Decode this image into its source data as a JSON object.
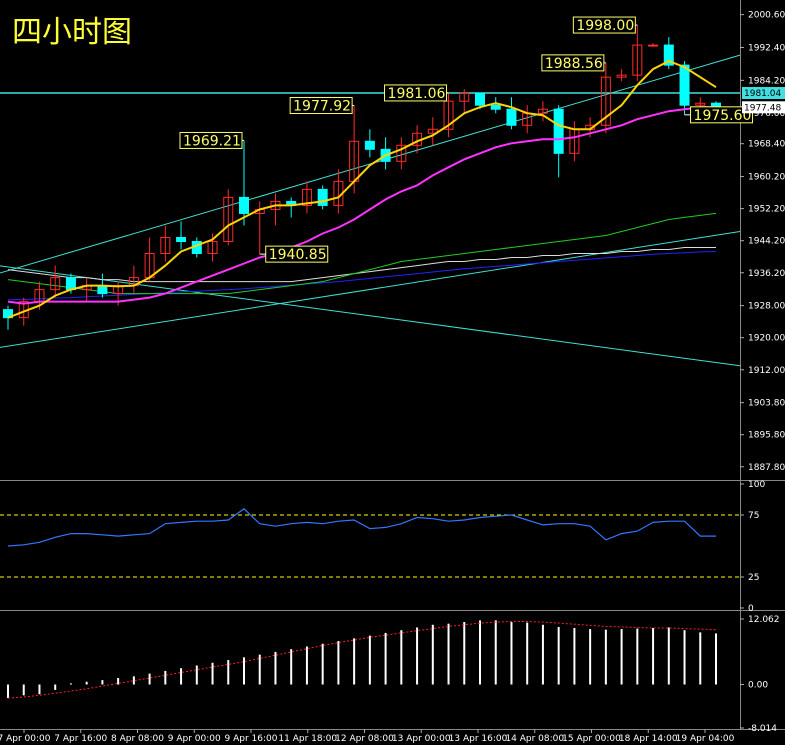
{
  "title": "四小时图",
  "colors": {
    "background": "#000000",
    "up_candle": "#ff2a2a",
    "down_candle": "#00ffff",
    "ma_fast": "#ffd400",
    "ma_mid": "#ff33ff",
    "ma_slow_green": "#22cc22",
    "ma_slow_white": "#dddddd",
    "ma_slow_blue": "#2222ff",
    "channel": "#40e0d0",
    "label_box": "#ffff66",
    "rsi_line": "#3377ff",
    "level_line": "#ffff00",
    "price_line": "#40e0e0",
    "atr_bar": "#ffffff",
    "atr_signal": "#ff2222"
  },
  "chart_data": [
    {
      "type": "candlestick",
      "title": "四小时图",
      "y_ticks": [
        "2000.60",
        "1992.40",
        "1984.20",
        "1976.00",
        "1968.40",
        "1960.20",
        "1952.20",
        "1944.20",
        "1936.20",
        "1928.00",
        "1920.00",
        "1912.00",
        "1903.80",
        "1895.80",
        "1887.80"
      ],
      "ylim": [
        1885.0,
        2003.0
      ],
      "x_ticks": [
        "7 Apr 00:00",
        "7 Apr 16:00",
        "8 Apr 08:00",
        "9 Apr 00:00",
        "9 Apr 16:00",
        "11 Apr 18:00",
        "12 Apr 08:00",
        "13 Apr 00:00",
        "13 Apr 16:00",
        "14 Apr 08:00",
        "15 Apr 00:00",
        "18 Apr 14:00",
        "19 Apr 04:00"
      ],
      "current_price_tag": "1981.04",
      "last_price_tag": "1977.48",
      "candles": [
        [
          1927.0,
          1928.0,
          1922.0,
          1925.0
        ],
        [
          1925.0,
          1930.0,
          1923.0,
          1929.0
        ],
        [
          1929.0,
          1934.0,
          1927.0,
          1932.0
        ],
        [
          1932.0,
          1938.0,
          1930.0,
          1935.0
        ],
        [
          1935.0,
          1936.0,
          1931.0,
          1932.0
        ],
        [
          1932.0,
          1935.0,
          1929.0,
          1933.0
        ],
        [
          1933.0,
          1936.0,
          1930.0,
          1931.0
        ],
        [
          1931.0,
          1934.0,
          1928.0,
          1933.0
        ],
        [
          1933.0,
          1938.0,
          1931.0,
          1935.0
        ],
        [
          1935.0,
          1945.0,
          1934.0,
          1941.0
        ],
        [
          1941.0,
          1948.0,
          1939.0,
          1945.0
        ],
        [
          1945.0,
          1949.0,
          1942.0,
          1944.0
        ],
        [
          1944.0,
          1945.0,
          1940.0,
          1941.0
        ],
        [
          1941.0,
          1946.0,
          1939.0,
          1944.0
        ],
        [
          1944.0,
          1957.0,
          1943.0,
          1955.0
        ],
        [
          1955.0,
          1969.21,
          1948.0,
          1951.0
        ],
        [
          1951.0,
          1954.0,
          1940.85,
          1952.0
        ],
        [
          1952.0,
          1956.0,
          1948.0,
          1954.0
        ],
        [
          1954.0,
          1955.0,
          1950.0,
          1953.0
        ],
        [
          1953.0,
          1959.0,
          1951.0,
          1957.0
        ],
        [
          1957.0,
          1958.0,
          1952.0,
          1953.0
        ],
        [
          1953.0,
          1962.0,
          1951.0,
          1959.0
        ],
        [
          1959.0,
          1977.92,
          1956.0,
          1969.0
        ],
        [
          1969.0,
          1972.0,
          1965.0,
          1967.0
        ],
        [
          1967.0,
          1970.0,
          1962.0,
          1964.0
        ],
        [
          1964.0,
          1970.0,
          1962.0,
          1968.0
        ],
        [
          1968.0,
          1973.0,
          1966.0,
          1971.0
        ],
        [
          1971.0,
          1975.0,
          1968.0,
          1972.0
        ],
        [
          1972.0,
          1981.06,
          1970.0,
          1979.0
        ],
        [
          1979.0,
          1982.0,
          1976.0,
          1981.0
        ],
        [
          1981.0,
          1981.06,
          1977.0,
          1978.0
        ],
        [
          1978.0,
          1980.0,
          1976.0,
          1977.0
        ],
        [
          1977.0,
          1980.0,
          1972.0,
          1973.0
        ],
        [
          1973.0,
          1978.0,
          1971.0,
          1976.0
        ],
        [
          1976.0,
          1979.0,
          1974.0,
          1977.0
        ],
        [
          1977.0,
          1978.0,
          1960.0,
          1966.0
        ],
        [
          1966.0,
          1974.0,
          1964.0,
          1972.0
        ],
        [
          1972.0,
          1975.0,
          1970.0,
          1973.0
        ],
        [
          1973.0,
          1988.56,
          1971.0,
          1985.0
        ],
        [
          1985.0,
          1987.0,
          1984.0,
          1985.5
        ],
        [
          1985.5,
          1998.0,
          1984.0,
          1993.0
        ],
        [
          1993.0,
          1993.5,
          1992.5,
          1993.0
        ],
        [
          1993.0,
          1995.0,
          1987.0,
          1988.0
        ],
        [
          1988.0,
          1989.0,
          1975.6,
          1978.0
        ],
        [
          1978.0,
          1980.0,
          1977.0,
          1978.5
        ],
        [
          1978.5,
          1979.0,
          1976.5,
          1977.48
        ]
      ],
      "ma_fast": [
        1925.0,
        1926.5,
        1928.0,
        1930.5,
        1932.0,
        1933.0,
        1933.0,
        1932.8,
        1933.0,
        1935.0,
        1938.0,
        1941.5,
        1943.0,
        1944.5,
        1948.0,
        1950.0,
        1952.0,
        1953.0,
        1953.0,
        1953.5,
        1954.0,
        1955.0,
        1959.0,
        1963.0,
        1965.5,
        1967.0,
        1969.0,
        1970.5,
        1973.0,
        1976.0,
        1977.5,
        1978.5,
        1977.5,
        1976.0,
        1975.5,
        1973.0,
        1972.0,
        1972.0,
        1975.0,
        1978.0,
        1983.0,
        1987.0,
        1989.0,
        1987.5,
        1985.0,
        1982.5
      ],
      "ma_mid": [
        1929.0,
        1928.5,
        1929.0,
        1929.0,
        1929.0,
        1929.0,
        1929.0,
        1929.0,
        1929.5,
        1930.0,
        1931.0,
        1932.5,
        1934.0,
        1935.5,
        1937.0,
        1938.5,
        1940.0,
        1941.0,
        1942.5,
        1944.0,
        1946.0,
        1947.5,
        1949.5,
        1952.0,
        1954.5,
        1956.5,
        1958.0,
        1960.5,
        1962.5,
        1964.5,
        1966.0,
        1967.5,
        1968.5,
        1969.0,
        1969.5,
        1969.5,
        1970.0,
        1971.0,
        1972.0,
        1973.0,
        1974.5,
        1975.5,
        1976.5,
        1977.0,
        1977.5,
        1977.5
      ],
      "ma_slow_green": [
        1934.5,
        1934.0,
        1933.5,
        1933.0,
        1932.5,
        1932.0,
        1931.5,
        1931.0,
        1931.0,
        1931.0,
        1931.0,
        1931.0,
        1931.0,
        1931.0,
        1931.0,
        1931.5,
        1932.0,
        1932.5,
        1933.0,
        1933.5,
        1934.0,
        1935.0,
        1936.0,
        1937.0,
        1938.0,
        1939.0,
        1939.5,
        1940.0,
        1940.5,
        1941.0,
        1941.5,
        1942.0,
        1942.5,
        1943.0,
        1943.5,
        1944.0,
        1944.5,
        1945.0,
        1945.5,
        1946.5,
        1947.5,
        1948.5,
        1949.5,
        1950.0,
        1950.5,
        1951.0
      ],
      "ma_slow_white": [
        1937.0,
        1936.5,
        1936.0,
        1935.5,
        1935.0,
        1935.0,
        1934.5,
        1934.5,
        1934.0,
        1934.0,
        1934.0,
        1934.0,
        1934.0,
        1934.0,
        1934.0,
        1934.0,
        1934.0,
        1934.0,
        1934.0,
        1934.5,
        1935.0,
        1935.5,
        1936.0,
        1936.5,
        1937.0,
        1937.5,
        1938.0,
        1938.5,
        1939.0,
        1939.0,
        1939.5,
        1939.5,
        1940.0,
        1940.0,
        1940.5,
        1940.5,
        1941.0,
        1941.0,
        1941.0,
        1941.5,
        1941.5,
        1942.0,
        1942.0,
        1942.5,
        1942.5,
        1942.5
      ],
      "ma_slow_blue": [
        1929.5,
        1929.5,
        1929.7,
        1929.9,
        1930.0,
        1930.2,
        1930.4,
        1930.6,
        1930.8,
        1931.0,
        1931.2,
        1931.4,
        1931.6,
        1931.8,
        1932.0,
        1932.2,
        1932.5,
        1932.8,
        1933.1,
        1933.4,
        1933.7,
        1934.0,
        1934.4,
        1934.8,
        1935.2,
        1935.6,
        1936.0,
        1936.4,
        1936.8,
        1937.2,
        1937.5,
        1937.8,
        1938.1,
        1938.4,
        1938.7,
        1939.0,
        1939.3,
        1939.6,
        1939.9,
        1940.2,
        1940.5,
        1940.8,
        1941.0,
        1941.2,
        1941.4,
        1941.5
      ],
      "channel_lines": [
        {
          "x0": 0,
          "y0": 1936.0,
          "x1": 45,
          "y1": 1990.5
        },
        {
          "x0": 0,
          "y0": 1917.5,
          "x1": 45,
          "y1": 1946.5
        },
        {
          "x0": 0,
          "y0": 1938.0,
          "x1": 45,
          "y1": 1913.0
        }
      ],
      "labels": [
        {
          "text": "1969.21",
          "index": 15,
          "value": 1969.21,
          "side": "left"
        },
        {
          "text": "1940.85",
          "index": 16,
          "value": 1940.85,
          "side": "right"
        },
        {
          "text": "1977.92",
          "index": 22,
          "value": 1977.92,
          "side": "left"
        },
        {
          "text": "1981.06",
          "index": 28,
          "value": 1981.06,
          "side": "left"
        },
        {
          "text": "1988.56",
          "index": 38,
          "value": 1988.56,
          "side": "left"
        },
        {
          "text": "1998.00",
          "index": 40,
          "value": 1998.0,
          "side": "left"
        },
        {
          "text": "1975.60",
          "index": 43,
          "value": 1975.6,
          "side": "right"
        }
      ]
    },
    {
      "type": "line",
      "y_ticks": [
        "100",
        "75",
        "25",
        "0"
      ],
      "ylim": [
        0,
        100
      ],
      "levels": [
        75,
        25
      ],
      "values": [
        50,
        51,
        53,
        57,
        60,
        60,
        59,
        58,
        59,
        60,
        68,
        69,
        70,
        70,
        71,
        80,
        68,
        66,
        68,
        69,
        68,
        70,
        71,
        64,
        65,
        68,
        73,
        72,
        70,
        71,
        73,
        74,
        75,
        71,
        67,
        68,
        68,
        66,
        55,
        60,
        62,
        69,
        70,
        70,
        58,
        58
      ]
    },
    {
      "type": "bar",
      "y_ticks": [
        "12.062",
        "0.00",
        "-8.014"
      ],
      "ylim": [
        -8.014,
        12.062
      ],
      "values": [
        -2.5,
        -2.0,
        -1.8,
        -1.0,
        0.2,
        0.5,
        0.8,
        1.2,
        1.5,
        2.0,
        2.5,
        3.0,
        3.5,
        4.0,
        4.5,
        5.0,
        5.5,
        6.0,
        6.5,
        7.0,
        7.5,
        8.0,
        8.5,
        9.0,
        9.5,
        10.0,
        10.5,
        11.0,
        11.2,
        11.5,
        11.8,
        11.8,
        11.5,
        11.4,
        11.0,
        10.6,
        10.4,
        10.2,
        10.1,
        10.2,
        10.3,
        10.4,
        10.5,
        10.0,
        9.6,
        9.4
      ],
      "signal": [
        -2.5,
        -2.3,
        -2.0,
        -1.6,
        -1.2,
        -0.8,
        -0.3,
        0.2,
        0.7,
        1.2,
        1.7,
        2.2,
        2.7,
        3.2,
        3.7,
        4.2,
        4.8,
        5.4,
        6.0,
        6.6,
        7.2,
        7.7,
        8.2,
        8.7,
        9.1,
        9.5,
        9.9,
        10.3,
        10.7,
        11.0,
        11.3,
        11.5,
        11.6,
        11.6,
        11.5,
        11.3,
        11.1,
        10.9,
        10.7,
        10.6,
        10.5,
        10.4,
        10.4,
        10.3,
        10.2,
        10.1
      ]
    }
  ]
}
